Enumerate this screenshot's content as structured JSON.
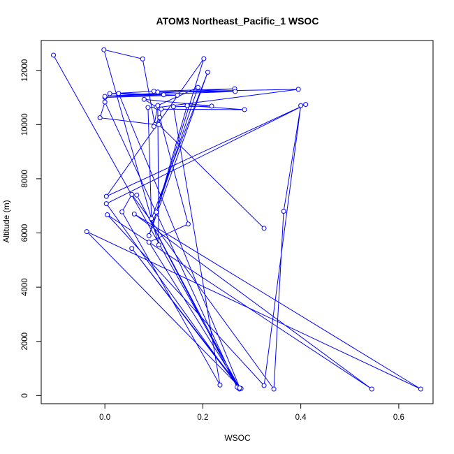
{
  "chart_data": {
    "type": "line",
    "title": "ATOM3 Northeast_Pacific_1 WSOC",
    "xlabel": "WSOC",
    "ylabel": "Altitude (m)",
    "xlim": [
      -0.13,
      0.67
    ],
    "ylim": [
      -300,
      13100
    ],
    "x_ticks": [
      0.0,
      0.2,
      0.4,
      0.6
    ],
    "x_tick_labels": [
      "0.0",
      "0.2",
      "0.4",
      "0.6"
    ],
    "y_ticks": [
      0,
      2000,
      4000,
      6000,
      8000,
      10000,
      12000
    ],
    "y_tick_labels": [
      "0",
      "2000",
      "4000",
      "6000",
      "8000",
      "10000",
      "12000"
    ],
    "grid": false,
    "series": [
      {
        "color": "#0000ff",
        "marker": "open-circle",
        "points": [
          {
            "x": -0.105,
            "y": 12560
          },
          {
            "x": 0.276,
            "y": 260
          },
          {
            "x": 0.028,
            "y": 11150
          },
          {
            "x": 0.12,
            "y": 11100
          },
          {
            "x": 0.0,
            "y": 11000
          },
          {
            "x": 0.148,
            "y": 11080
          },
          {
            "x": 0.01,
            "y": 11140
          },
          {
            "x": 0.1,
            "y": 11230
          },
          {
            "x": 0.265,
            "y": 11320
          },
          {
            "x": 0.0,
            "y": 11040
          },
          {
            "x": 0.266,
            "y": 11220
          },
          {
            "x": 0.108,
            "y": 11200
          },
          {
            "x": 0.395,
            "y": 11300
          },
          {
            "x": 0.108,
            "y": 10630
          },
          {
            "x": 0.11,
            "y": 5560
          },
          {
            "x": -0.002,
            "y": 12760
          },
          {
            "x": 0.077,
            "y": 12420
          },
          {
            "x": 0.102,
            "y": 10000
          },
          {
            "x": -0.01,
            "y": 10250
          },
          {
            "x": 0.0,
            "y": 10830
          },
          {
            "x": 0.27,
            "y": 310
          },
          {
            "x": 0.065,
            "y": 7400
          },
          {
            "x": 0.275,
            "y": 240
          },
          {
            "x": 0.003,
            "y": 7080
          },
          {
            "x": 0.41,
            "y": 10740
          },
          {
            "x": 0.003,
            "y": 7350
          },
          {
            "x": 0.202,
            "y": 12430
          },
          {
            "x": 0.09,
            "y": 5900
          },
          {
            "x": 0.21,
            "y": 11930
          },
          {
            "x": 0.095,
            "y": 6530
          },
          {
            "x": 0.088,
            "y": 10630
          },
          {
            "x": 0.105,
            "y": 10650
          },
          {
            "x": 0.08,
            "y": 10930
          },
          {
            "x": 0.218,
            "y": 10680
          },
          {
            "x": 0.14,
            "y": 10660
          },
          {
            "x": 0.235,
            "y": 390
          },
          {
            "x": 0.035,
            "y": 6780
          },
          {
            "x": 0.055,
            "y": 7420
          },
          {
            "x": 0.345,
            "y": 240
          },
          {
            "x": 0.365,
            "y": 6800
          },
          {
            "x": 0.4,
            "y": 10700
          },
          {
            "x": 0.325,
            "y": 370
          },
          {
            "x": 0.005,
            "y": 6670
          },
          {
            "x": 0.545,
            "y": 240
          },
          {
            "x": 0.06,
            "y": 6700
          },
          {
            "x": 0.645,
            "y": 240
          },
          {
            "x": -0.037,
            "y": 6050
          },
          {
            "x": 0.278,
            "y": 260
          },
          {
            "x": 0.055,
            "y": 5430
          },
          {
            "x": 0.275,
            "y": 280
          },
          {
            "x": 0.09,
            "y": 5660
          },
          {
            "x": 0.17,
            "y": 6330
          },
          {
            "x": 0.112,
            "y": 10260
          },
          {
            "x": 0.1,
            "y": 9930
          },
          {
            "x": 0.108,
            "y": 10700
          },
          {
            "x": 0.19,
            "y": 11370
          },
          {
            "x": 0.105,
            "y": 6770
          },
          {
            "x": 0.168,
            "y": 10700
          },
          {
            "x": 0.285,
            "y": 10550
          },
          {
            "x": 0.115,
            "y": 10570
          },
          {
            "x": 0.11,
            "y": 10000
          },
          {
            "x": 0.325,
            "y": 6170
          }
        ]
      }
    ]
  }
}
